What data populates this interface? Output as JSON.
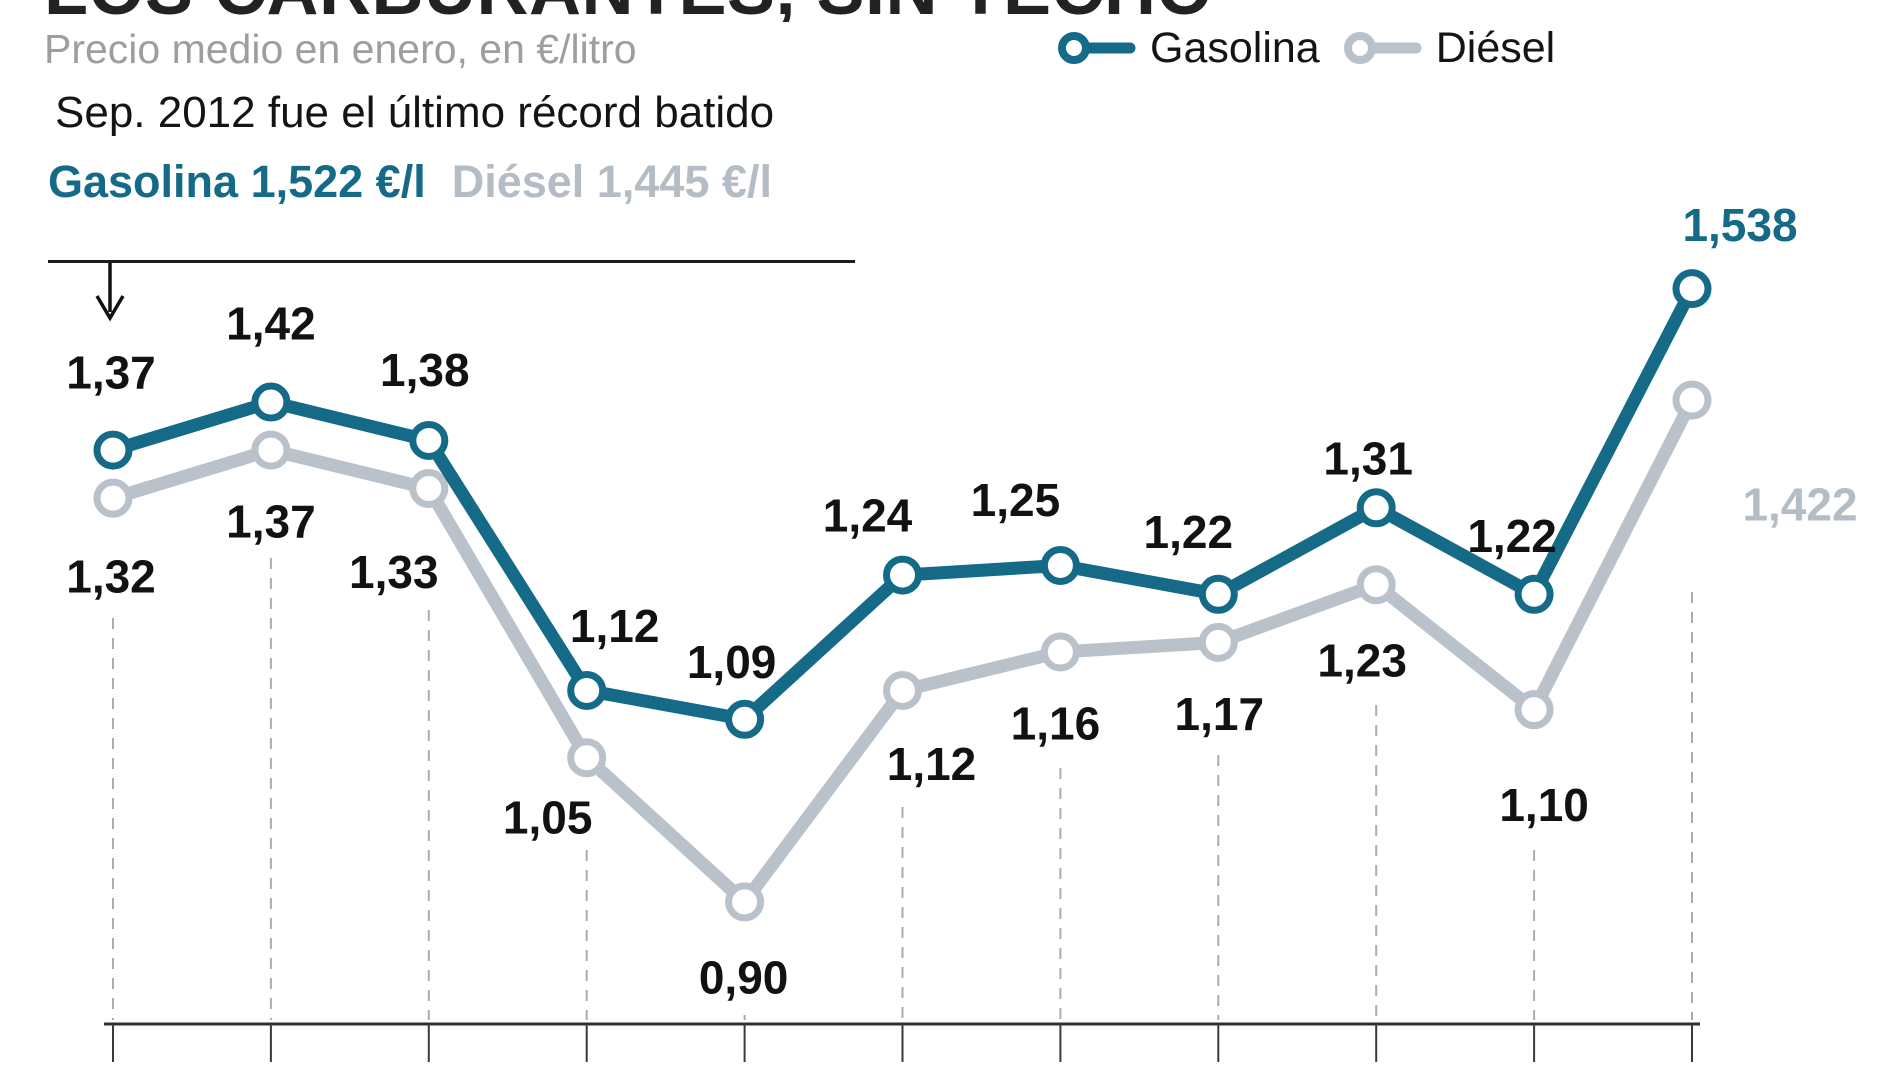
{
  "header": {
    "title_partial": "LOS CARBURANTES, SIN TECHO",
    "subtitle": "Precio medio en enero, en €/litro"
  },
  "legend": {
    "items": [
      {
        "label": "Gasolina",
        "color": "#156a87"
      },
      {
        "label": "Diésel",
        "color": "#b9c2ca"
      }
    ]
  },
  "annotation": {
    "line1": "Sep. 2012 fue el último récord batido",
    "gasolina_record": "Gasolina 1,522 €/l",
    "diesel_record": "Diésel 1,445 €/l"
  },
  "chart_data": {
    "type": "line",
    "title": "Precio medio en enero, en €/litro",
    "x_tick_count": 11,
    "x_tick_labels_visible": false,
    "y_axis_visible": false,
    "y_value_range": [
      0.85,
      1.6
    ],
    "grid": "vertical-dashed",
    "legend_position": "top-right",
    "colors": {
      "gasolina": "#156a87",
      "diesel": "#b9c2ca",
      "data_label": "#121212",
      "axis": "#2f2f2f",
      "gridline": "#a7adb3"
    },
    "series": [
      {
        "name": "Gasolina",
        "color": "#156a87",
        "values": [
          1.37,
          1.42,
          1.38,
          1.12,
          1.09,
          1.24,
          1.25,
          1.22,
          1.31,
          1.22,
          1.538
        ],
        "labels": [
          "1,37",
          "1,42",
          "1,38",
          "1,12",
          "1,09",
          "1,24",
          "1,25",
          "1,22",
          "1,31",
          "1,22",
          "1,538"
        ],
        "final_label_color": "#156a87"
      },
      {
        "name": "Diésel",
        "color": "#b9c2ca",
        "values": [
          1.32,
          1.37,
          1.33,
          1.05,
          0.9,
          1.12,
          1.16,
          1.17,
          1.23,
          1.1,
          1.422
        ],
        "labels": [
          "1,32",
          "1,37",
          "1,33",
          "1,05",
          "0,90",
          "1,12",
          "1,16",
          "1,17",
          "1,23",
          "1,10",
          "1,422"
        ],
        "final_label_color": "#b4bdc5"
      }
    ],
    "annotations": {
      "record_note": "Sep. 2012 fue el último récord batido",
      "records": [
        "Gasolina 1,522 €/l",
        "Diésel 1,445 €/l"
      ]
    }
  }
}
